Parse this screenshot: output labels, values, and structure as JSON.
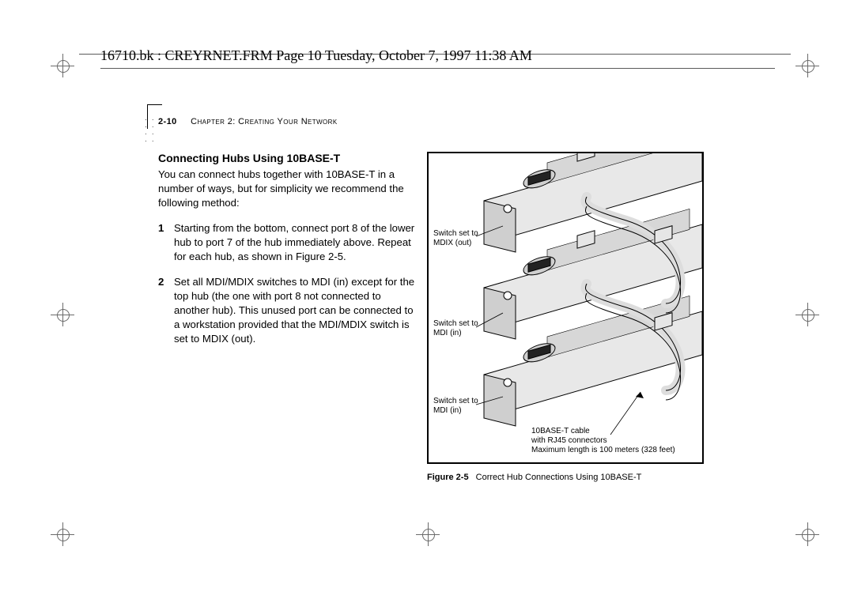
{
  "header": {
    "source_line": "16710.bk : CREYRNET.FRM  Page 10  Tuesday, October 7, 1997  11:38 AM"
  },
  "runhead": {
    "page_number": "2-10",
    "chapter_label": "Chapter 2: Creating Your Network"
  },
  "section": {
    "title": "Connecting Hubs Using 10BASE-T",
    "intro": "You can connect hubs together with 10BASE-T in a number of ways, but for simplicity we recommend the following method:",
    "steps": [
      {
        "n": "1",
        "text": "Starting from the bottom, connect port 8 of the lower hub to port 7 of the hub immediately above. Repeat for each hub, as shown in Figure 2-5."
      },
      {
        "n": "2",
        "text": "Set all MDI/MDIX switches to MDI (in) except for the top hub (the one with port 8 not connected to another hub). This unused port can be connected to a workstation provided that the MDI/MDIX switch is set to MDIX (out)."
      }
    ]
  },
  "figure": {
    "caption_label": "Figure 2-5",
    "caption_text": "Correct Hub Connections Using 10BASE-T",
    "labels": {
      "top_switch": "Switch set to\nMDIX (out)",
      "mid_switch": "Switch set to\nMDI (in)",
      "bot_switch": "Switch set to\nMDI (in)",
      "cable": "10BASE-T cable\nwith RJ45 connectors\nMaximum length is 100 meters (328 feet)"
    }
  },
  "colors": {
    "text": "#000000",
    "rule": "#5a5a5a",
    "reg": "#6a6a6a",
    "background": "#ffffff"
  }
}
